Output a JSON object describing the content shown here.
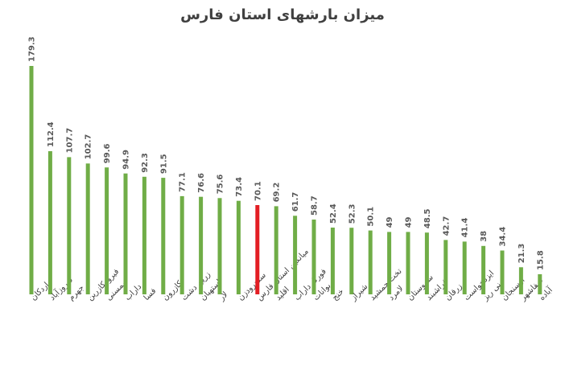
{
  "chart_data": {
    "type": "bar",
    "title": "میزان بارشهای استان فارس",
    "xlabel": "",
    "ylabel": "",
    "ylim": [
      0,
      190
    ],
    "grid": false,
    "categories": [
      "اردکان",
      "فیروزآباد",
      "جهرم",
      "فیروزکازرین",
      "ممسنی",
      "داراب",
      "فسا",
      "کازرون",
      "زرین دشت",
      "استهبان",
      "لار",
      "سددرودزن",
      "میانگین استان فارس",
      "اقلید",
      "فورگ داراب",
      "بوانات",
      "خنج",
      "شیراز",
      "تخت جمشید",
      "لامرد",
      "سروستان",
      "فراشبند",
      "زرقان",
      "ایزدخواست",
      "نی ریز",
      "ارسنجان",
      "صفاشهر",
      "آباده"
    ],
    "value_labels": [
      "179.3",
      "112.4",
      "107.7",
      "102.7",
      "99.6",
      "94.9",
      "92.3",
      "91.5",
      "77.1",
      "76.6",
      "75.6",
      "73.4",
      "70.1",
      "69.2",
      "61.7",
      "58.7",
      "52.4",
      "52.3",
      "50.1",
      "49",
      "49",
      "48.5",
      "42.7",
      "41.4",
      "38",
      "34.4",
      "21.3",
      "15.8"
    ],
    "series": [
      {
        "values": [
          179.3,
          112.4,
          107.7,
          102.7,
          99.6,
          94.9,
          92.3,
          91.5,
          77.1,
          76.6,
          75.6,
          73.4,
          70.1,
          69.2,
          61.7,
          58.7,
          52.4,
          52.3,
          50.1,
          49,
          49,
          48.5,
          42.7,
          41.4,
          38,
          34.4,
          21.3,
          15.8
        ],
        "color": "#70AD47"
      }
    ],
    "highlight": {
      "category": "میانگین استان فارس",
      "color": "#E31E24"
    }
  }
}
